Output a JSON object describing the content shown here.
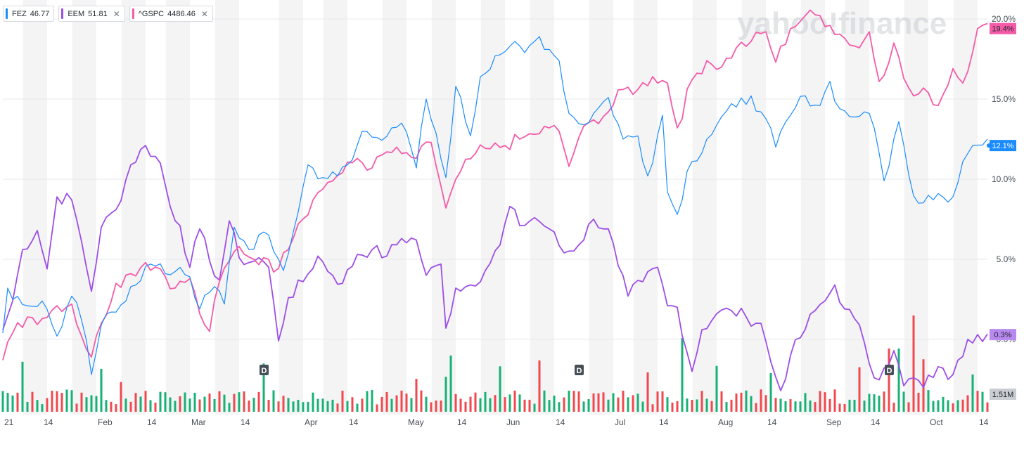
{
  "legend": [
    {
      "symbol": "FEZ",
      "value": "46.77",
      "color": "#1a8cff",
      "removable": false
    },
    {
      "symbol": "EEM",
      "value": "51.81",
      "color": "#9d4ee7",
      "removable": true
    },
    {
      "symbol": "^GSPC",
      "value": "4486.46",
      "color": "#f55ba8",
      "removable": true
    }
  ],
  "close_glyph": "✕",
  "watermark": "yahoo!finance",
  "price_tags": {
    "gspc": "19.4%",
    "fez": "12.1%",
    "eem": "0.3%",
    "volume": "1.51M"
  },
  "dividend_marker": "D",
  "chart_data": {
    "type": "line",
    "y_unit": "percent change",
    "ylim": [
      -3,
      20.5
    ],
    "yticks": [
      "20.0%",
      "15.0%",
      "10.0%",
      "5.0%",
      "0.0%"
    ],
    "ytick_values": [
      20,
      15,
      10,
      5,
      0
    ],
    "x_days": 200,
    "xticks": [
      {
        "label": "21",
        "day": 0
      },
      {
        "label": "14",
        "day": 8
      },
      {
        "label": "Feb",
        "day": 19
      },
      {
        "label": "14",
        "day": 29
      },
      {
        "label": "Mar",
        "day": 38
      },
      {
        "label": "14",
        "day": 48
      },
      {
        "label": "Apr",
        "day": 61
      },
      {
        "label": "14",
        "day": 70
      },
      {
        "label": "May",
        "day": 82
      },
      {
        "label": "14",
        "day": 92
      },
      {
        "label": "Jun",
        "day": 102
      },
      {
        "label": "14",
        "day": 112
      },
      {
        "label": "Jul",
        "day": 124
      },
      {
        "label": "14",
        "day": 133
      },
      {
        "label": "Aug",
        "day": 145
      },
      {
        "label": "14",
        "day": 155
      },
      {
        "label": "Sep",
        "day": 167
      },
      {
        "label": "14",
        "day": 176
      },
      {
        "label": "Oct",
        "day": 188
      },
      {
        "label": "14",
        "day": 198
      }
    ],
    "shaded_weeks_start_days": [
      9,
      19,
      29,
      38,
      48,
      61,
      70,
      82,
      92,
      102,
      112,
      124,
      133,
      145,
      155,
      167,
      176,
      188,
      198
    ],
    "dividend_days": [
      53,
      117,
      180
    ],
    "series": [
      {
        "name": "FEZ",
        "color": "#1a8cff",
        "anchors": [
          [
            0,
            0.4
          ],
          [
            1,
            3.2
          ],
          [
            5,
            2.1
          ],
          [
            8,
            2.4
          ],
          [
            11,
            0.2
          ],
          [
            14,
            2.7
          ],
          [
            16,
            1.2
          ],
          [
            18,
            -2.2
          ],
          [
            20,
            0.9
          ],
          [
            23,
            1.7
          ],
          [
            26,
            3.3
          ],
          [
            30,
            4.7
          ],
          [
            33,
            4.1
          ],
          [
            36,
            4.5
          ],
          [
            38,
            3.9
          ],
          [
            40,
            1.9
          ],
          [
            43,
            3.3
          ],
          [
            45,
            2.2
          ],
          [
            47,
            7.0
          ],
          [
            50,
            5.6
          ],
          [
            53,
            6.7
          ],
          [
            55,
            5.5
          ],
          [
            57,
            4.3
          ],
          [
            59,
            6.7
          ],
          [
            62,
            10.9
          ],
          [
            65,
            10.1
          ],
          [
            68,
            10.2
          ],
          [
            71,
            11.2
          ],
          [
            73,
            13.0
          ],
          [
            76,
            12.6
          ],
          [
            79,
            13.2
          ],
          [
            81,
            13.5
          ],
          [
            84,
            10.7
          ],
          [
            86,
            15.0
          ],
          [
            90,
            10.1
          ],
          [
            92,
            15.8
          ],
          [
            95,
            12.7
          ],
          [
            97,
            16.4
          ],
          [
            100,
            17.7
          ],
          [
            103,
            18.3
          ],
          [
            106,
            17.9
          ],
          [
            109,
            18.9
          ],
          [
            111,
            18.1
          ],
          [
            113,
            17.4
          ],
          [
            115,
            14.1
          ],
          [
            118,
            13.4
          ],
          [
            120,
            14.1
          ],
          [
            123,
            15.1
          ],
          [
            126,
            12.5
          ],
          [
            129,
            12.7
          ],
          [
            131,
            10.2
          ],
          [
            134,
            14.0
          ],
          [
            135,
            9.2
          ],
          [
            137,
            7.8
          ],
          [
            139,
            10.5
          ],
          [
            143,
            12.5
          ],
          [
            146,
            13.9
          ],
          [
            149,
            14.5
          ],
          [
            152,
            15.2
          ],
          [
            154,
            14.2
          ],
          [
            157,
            12.0
          ],
          [
            160,
            14.0
          ],
          [
            163,
            15.2
          ],
          [
            166,
            14.6
          ],
          [
            168,
            16.1
          ],
          [
            170,
            14.4
          ],
          [
            172,
            13.9
          ],
          [
            175,
            14.2
          ],
          [
            177,
            13.2
          ],
          [
            179,
            9.9
          ],
          [
            182,
            13.6
          ],
          [
            184,
            10.3
          ],
          [
            186,
            8.5
          ],
          [
            188,
            9.0
          ],
          [
            190,
            9.1
          ],
          [
            193,
            8.9
          ],
          [
            195,
            11.1
          ],
          [
            197,
            12.1
          ]
        ]
      },
      {
        "name": "EEM",
        "color": "#9d4ee7",
        "anchors": [
          [
            0,
            0.6
          ],
          [
            2,
            2.4
          ],
          [
            4,
            5.6
          ],
          [
            7,
            6.8
          ],
          [
            9,
            4.4
          ],
          [
            11,
            8.9
          ],
          [
            14,
            8.7
          ],
          [
            16,
            6.1
          ],
          [
            18,
            3.0
          ],
          [
            20,
            7.0
          ],
          [
            23,
            8.1
          ],
          [
            26,
            10.9
          ],
          [
            29,
            12.1
          ],
          [
            32,
            11.0
          ],
          [
            34,
            8.3
          ],
          [
            36,
            7.1
          ],
          [
            38,
            4.5
          ],
          [
            40,
            6.9
          ],
          [
            42,
            4.9
          ],
          [
            44,
            3.7
          ],
          [
            46,
            7.4
          ],
          [
            48,
            5.1
          ],
          [
            50,
            4.8
          ],
          [
            52,
            5.1
          ],
          [
            54,
            4.5
          ],
          [
            56,
            -0.1
          ],
          [
            58,
            2.6
          ],
          [
            61,
            3.6
          ],
          [
            64,
            5.2
          ],
          [
            67,
            4.0
          ],
          [
            69,
            3.5
          ],
          [
            72,
            5.3
          ],
          [
            75,
            5.6
          ],
          [
            78,
            5.2
          ],
          [
            81,
            6.3
          ],
          [
            84,
            6.2
          ],
          [
            86,
            4.0
          ],
          [
            89,
            4.7
          ],
          [
            90,
            0.7
          ],
          [
            92,
            3.2
          ],
          [
            95,
            3.4
          ],
          [
            98,
            4.3
          ],
          [
            101,
            5.9
          ],
          [
            103,
            8.3
          ],
          [
            105,
            7.1
          ],
          [
            108,
            7.6
          ],
          [
            111,
            6.9
          ],
          [
            114,
            5.4
          ],
          [
            117,
            5.9
          ],
          [
            120,
            7.5
          ],
          [
            123,
            6.9
          ],
          [
            125,
            4.6
          ],
          [
            127,
            2.7
          ],
          [
            130,
            3.6
          ],
          [
            133,
            4.5
          ],
          [
            135,
            2.1
          ],
          [
            137,
            2.0
          ],
          [
            140,
            -2.0
          ],
          [
            142,
            0.6
          ],
          [
            145,
            1.6
          ],
          [
            148,
            1.8
          ],
          [
            151,
            1.4
          ],
          [
            154,
            1.0
          ],
          [
            156,
            -1.4
          ],
          [
            158,
            -3.2
          ],
          [
            160,
            -1.0
          ],
          [
            162,
            0.1
          ],
          [
            165,
            1.8
          ],
          [
            167,
            2.4
          ],
          [
            169,
            3.4
          ],
          [
            171,
            1.9
          ],
          [
            173,
            1.3
          ],
          [
            175,
            -0.2
          ],
          [
            177,
            -2.4
          ],
          [
            179,
            -1.8
          ],
          [
            181,
            -0.7
          ],
          [
            183,
            -2.9
          ],
          [
            185,
            -2.4
          ],
          [
            187,
            -3.0
          ],
          [
            190,
            -1.7
          ],
          [
            192,
            -2.5
          ],
          [
            194,
            -1.3
          ],
          [
            196,
            0.0
          ],
          [
            198,
            0.3
          ]
        ]
      },
      {
        "name": "^GSPC",
        "color": "#f55ba8",
        "anchors": [
          [
            0,
            -1.3
          ],
          [
            2,
            0.4
          ],
          [
            5,
            1.4
          ],
          [
            8,
            1.3
          ],
          [
            11,
            2.1
          ],
          [
            14,
            2.2
          ],
          [
            16,
            0.2
          ],
          [
            18,
            -1.1
          ],
          [
            20,
            1.0
          ],
          [
            23,
            3.5
          ],
          [
            26,
            4.1
          ],
          [
            29,
            4.8
          ],
          [
            32,
            4.4
          ],
          [
            35,
            3.2
          ],
          [
            38,
            3.8
          ],
          [
            40,
            1.6
          ],
          [
            42,
            0.5
          ],
          [
            44,
            3.6
          ],
          [
            46,
            4.9
          ],
          [
            48,
            5.8
          ],
          [
            51,
            5.0
          ],
          [
            53,
            5.1
          ],
          [
            55,
            4.2
          ],
          [
            57,
            5.4
          ],
          [
            60,
            7.2
          ],
          [
            63,
            8.7
          ],
          [
            66,
            9.8
          ],
          [
            69,
            10.4
          ],
          [
            72,
            11.3
          ],
          [
            75,
            10.7
          ],
          [
            78,
            11.7
          ],
          [
            81,
            11.6
          ],
          [
            84,
            11.3
          ],
          [
            87,
            12.3
          ],
          [
            90,
            8.2
          ],
          [
            93,
            10.5
          ],
          [
            96,
            11.6
          ],
          [
            99,
            11.9
          ],
          [
            102,
            12.1
          ],
          [
            105,
            12.5
          ],
          [
            108,
            12.8
          ],
          [
            111,
            13.2
          ],
          [
            113,
            13.0
          ],
          [
            115,
            10.8
          ],
          [
            117,
            12.6
          ],
          [
            120,
            13.7
          ],
          [
            123,
            14.2
          ],
          [
            126,
            15.6
          ],
          [
            129,
            15.6
          ],
          [
            132,
            16.4
          ],
          [
            135,
            16.0
          ],
          [
            137,
            13.2
          ],
          [
            140,
            16.2
          ],
          [
            143,
            17.4
          ],
          [
            146,
            17.0
          ],
          [
            149,
            18.2
          ],
          [
            152,
            18.6
          ],
          [
            155,
            19.2
          ],
          [
            157,
            17.3
          ],
          [
            160,
            19.4
          ],
          [
            163,
            20.2
          ],
          [
            166,
            20.2
          ],
          [
            168,
            19.6
          ],
          [
            171,
            18.8
          ],
          [
            174,
            18.2
          ],
          [
            176,
            19.2
          ],
          [
            178,
            16.1
          ],
          [
            181,
            18.5
          ],
          [
            183,
            16.3
          ],
          [
            185,
            15.2
          ],
          [
            188,
            15.4
          ],
          [
            190,
            14.6
          ],
          [
            193,
            16.9
          ],
          [
            195,
            16.0
          ],
          [
            198,
            19.4
          ]
        ]
      }
    ],
    "volume_label": "1.51M"
  }
}
